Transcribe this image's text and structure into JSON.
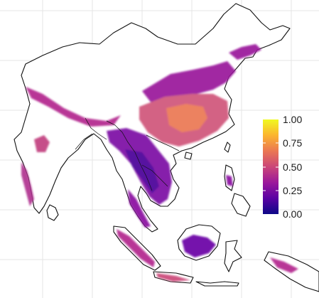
{
  "map": {
    "region": "South and Southeast Asia with China",
    "grid": true,
    "background": "#ffffff",
    "outline_color": "#111111",
    "grid_color": "#e4e4e4",
    "palette": [
      "#0d0887",
      "#5b02a3",
      "#9a179b",
      "#cb4678",
      "#eb7852",
      "#fbb32f",
      "#f0f921"
    ]
  },
  "legend": {
    "min": 0.0,
    "max": 1.0,
    "ticks": [
      "1.00",
      "0.75",
      "0.50",
      "0.25",
      "0.00"
    ],
    "placement": "right"
  }
}
